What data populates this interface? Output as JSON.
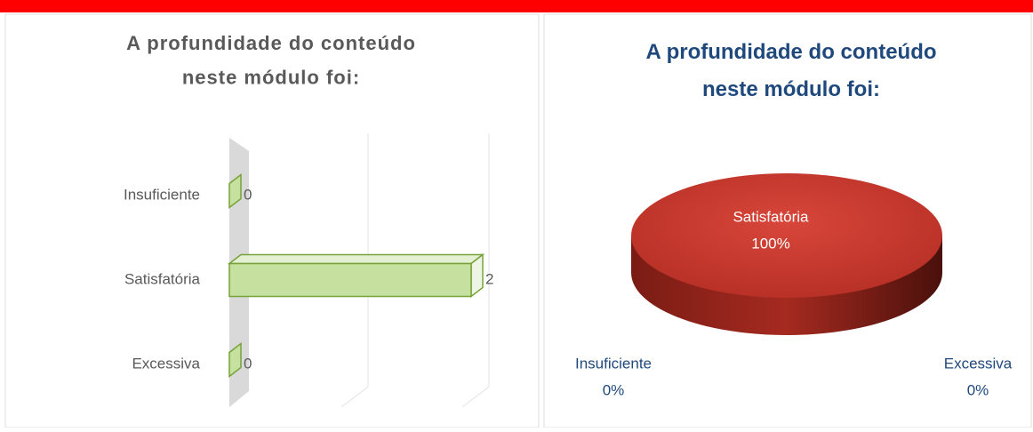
{
  "chart_data": [
    {
      "type": "bar3d",
      "orientation": "horizontal",
      "title": "A profundidade do conteúdo neste módulo foi:",
      "categories": [
        "Insuficiente",
        "Satisfatória",
        "Excessiva"
      ],
      "values": [
        0,
        2,
        0
      ],
      "color": "#c6e0a0",
      "edge_color": "#77a33a",
      "xlim": [
        0,
        2
      ],
      "grid": true
    },
    {
      "type": "pie3d",
      "title": "A profundidade do conteúdo neste módulo foi:",
      "categories": [
        "Insuficiente",
        "Satisfatória",
        "Excessiva"
      ],
      "values": [
        0,
        100,
        0
      ],
      "value_labels": [
        "0%",
        "100%",
        "0%"
      ],
      "color": "#c0392f"
    }
  ]
}
